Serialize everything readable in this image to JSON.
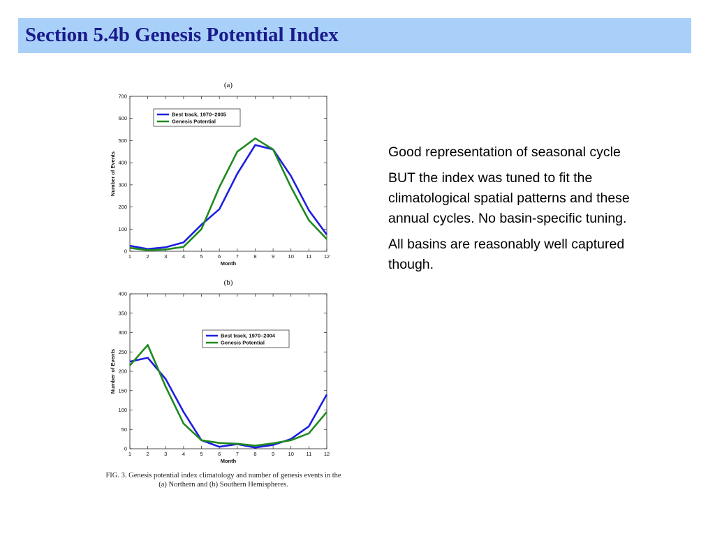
{
  "slide": {
    "title": "Section 5.4b Genesis Potential Index",
    "caption": "FIG. 3. Genesis potential index climatology and number of genesis events in the (a) Northern and (b) Southern Hemispheres.",
    "bullets": [
      "Good representation of seasonal cycle",
      "BUT the index was tuned to fit the climatological spatial patterns and these annual cycles. No basin-specific tuning.",
      "All basins are reasonably well captured though."
    ],
    "colors": {
      "title_bar": "#a8d0f8",
      "title_text": "#1a1a8c"
    }
  },
  "chart_data": [
    {
      "type": "line",
      "panel_label": "(a)",
      "xlabel": "Month",
      "ylabel": "Number of Events",
      "x": [
        1,
        2,
        3,
        4,
        5,
        6,
        7,
        8,
        9,
        10,
        11,
        12
      ],
      "xlim": [
        1,
        12
      ],
      "ylim": [
        0,
        700
      ],
      "yticks": [
        0,
        100,
        200,
        300,
        400,
        500,
        600,
        700
      ],
      "xticks": [
        1,
        2,
        3,
        4,
        5,
        6,
        7,
        8,
        9,
        10,
        11,
        12
      ],
      "grid": false,
      "legend_position": "top-left",
      "series": [
        {
          "name": "Best track, 1970–2005",
          "color": "#1f1fe0",
          "values": [
            25,
            10,
            18,
            40,
            120,
            190,
            350,
            480,
            460,
            340,
            185,
            75
          ]
        },
        {
          "name": "Genesis Potential",
          "color": "#1f8a1f",
          "values": [
            15,
            5,
            8,
            20,
            100,
            290,
            450,
            510,
            460,
            290,
            140,
            55
          ]
        }
      ]
    },
    {
      "type": "line",
      "panel_label": "(b)",
      "xlabel": "Month",
      "ylabel": "Number of Events",
      "x": [
        1,
        2,
        3,
        4,
        5,
        6,
        7,
        8,
        9,
        10,
        11,
        12
      ],
      "xlim": [
        1,
        12
      ],
      "ylim": [
        0,
        400
      ],
      "yticks": [
        0,
        50,
        100,
        150,
        200,
        250,
        300,
        350,
        400
      ],
      "xticks": [
        1,
        2,
        3,
        4,
        5,
        6,
        7,
        8,
        9,
        10,
        11,
        12
      ],
      "grid": false,
      "legend_position": "right",
      "series": [
        {
          "name": "Best track, 1970–2004",
          "color": "#1f1fe0",
          "values": [
            225,
            235,
            180,
            95,
            22,
            5,
            12,
            3,
            10,
            25,
            58,
            140
          ]
        },
        {
          "name": "Genesis Potential",
          "color": "#1f8a1f",
          "values": [
            215,
            268,
            160,
            65,
            22,
            15,
            13,
            8,
            14,
            22,
            40,
            95
          ]
        }
      ]
    }
  ]
}
